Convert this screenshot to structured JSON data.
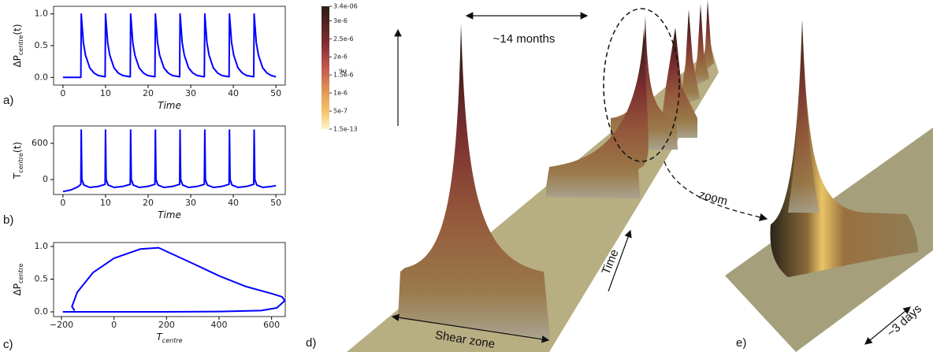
{
  "chart_data": [
    {
      "type": "line",
      "panel": "a)",
      "color": "#0000ff",
      "xlabel": {
        "main": "Time"
      },
      "ylabel": {
        "main": "ΔP",
        "sub": "centre",
        "tail": "(t)"
      },
      "x": [
        0,
        4.2,
        4.3,
        4.8,
        5.3,
        6.3,
        7.3,
        8.3,
        9.9,
        10.0,
        10.5,
        11.0,
        12.0,
        13.0,
        14.0,
        15.8,
        15.9,
        16.4,
        16.9,
        17.9,
        18.9,
        19.9,
        21.6,
        21.7,
        22.2,
        22.7,
        23.7,
        24.7,
        25.7,
        27.4,
        27.5,
        28.0,
        28.5,
        29.5,
        30.5,
        31.5,
        33.2,
        33.3,
        33.8,
        34.3,
        35.3,
        36.3,
        37.3,
        39.0,
        39.1,
        39.6,
        40.1,
        41.1,
        42.1,
        43.1,
        44.8,
        44.9,
        45.4,
        45.9,
        46.9,
        47.9,
        48.9,
        50.0
      ],
      "values": [
        0,
        0,
        1.0,
        0.55,
        0.35,
        0.15,
        0.07,
        0.03,
        0.01,
        1.0,
        0.55,
        0.35,
        0.15,
        0.07,
        0.03,
        0.01,
        1.0,
        0.55,
        0.35,
        0.15,
        0.07,
        0.03,
        0.01,
        1.0,
        0.55,
        0.35,
        0.15,
        0.07,
        0.03,
        0.01,
        1.0,
        0.55,
        0.35,
        0.15,
        0.07,
        0.03,
        0.01,
        1.0,
        0.55,
        0.35,
        0.15,
        0.07,
        0.03,
        0.01,
        1.0,
        0.55,
        0.35,
        0.15,
        0.07,
        0.03,
        0.01,
        1.0,
        0.55,
        0.35,
        0.15,
        0.07,
        0.03,
        0.01
      ],
      "xlim": [
        -2.2,
        52.2
      ],
      "ylim": [
        -0.12,
        1.12
      ],
      "xticks": [
        0,
        10,
        20,
        30,
        40,
        50
      ],
      "yticks": [
        {
          "value": 0,
          "label": "0.0"
        },
        {
          "value": 0.5,
          "label": "0.5"
        },
        {
          "value": 1,
          "label": "1.0"
        }
      ]
    },
    {
      "type": "line",
      "panel": "b)",
      "color": "#0000ff",
      "xlabel": {
        "main": "Time"
      },
      "ylabel": {
        "main": "T",
        "sub": "centre",
        "tail": "(t)"
      },
      "x": [
        0,
        2,
        3.5,
        4.2,
        4.3,
        4.45,
        4.9,
        6.3,
        8.3,
        9.9,
        10.0,
        10.15,
        10.6,
        12.0,
        14.0,
        15.8,
        15.9,
        16.05,
        16.5,
        17.9,
        19.9,
        21.6,
        21.7,
        21.85,
        22.3,
        23.7,
        25.7,
        27.4,
        27.5,
        27.65,
        28.1,
        29.5,
        31.5,
        33.2,
        33.3,
        33.45,
        33.9,
        35.3,
        37.3,
        39.0,
        39.1,
        39.25,
        39.7,
        41.1,
        43.1,
        44.8,
        44.9,
        45.05,
        45.5,
        46.9,
        48.9,
        50.0
      ],
      "values": [
        -200,
        -170,
        -120,
        -80,
        820,
        0,
        -90,
        -130,
        -115,
        -80,
        820,
        0,
        -90,
        -130,
        -115,
        -80,
        820,
        0,
        -90,
        -130,
        -115,
        -80,
        820,
        0,
        -90,
        -130,
        -115,
        -80,
        820,
        0,
        -90,
        -130,
        -115,
        -80,
        820,
        0,
        -90,
        -130,
        -115,
        -80,
        820,
        0,
        -90,
        -130,
        -115,
        -80,
        820,
        0,
        -90,
        -130,
        -115,
        -100
      ],
      "xlim": [
        -2.2,
        52.2
      ],
      "ylim": [
        -248,
        887
      ],
      "xticks": [
        0,
        10,
        20,
        30,
        40,
        50
      ],
      "yticks": [
        0,
        600
      ]
    },
    {
      "type": "line",
      "panel": "c)",
      "color": "#0000ff",
      "xlabel": {
        "main": "T",
        "sub": "centre"
      },
      "ylabel": {
        "main": "ΔP",
        "sub": "centre"
      },
      "x": [
        -195,
        -160,
        0,
        200,
        400,
        560,
        620,
        650,
        640,
        600,
        500,
        400,
        300,
        170,
        100,
        0,
        -80,
        -140,
        -160,
        -150
      ],
      "values": [
        0,
        0,
        0,
        0,
        0.005,
        0.02,
        0.06,
        0.17,
        0.23,
        0.28,
        0.39,
        0.55,
        0.74,
        0.98,
        0.96,
        0.82,
        0.6,
        0.3,
        0.08,
        0.02
      ],
      "xlim": [
        -230,
        652
      ],
      "ylim": [
        -0.072,
        1.06
      ],
      "xticks": [
        {
          "value": -200,
          "label": "−200"
        },
        0,
        200,
        400,
        600
      ],
      "yticks": [
        {
          "value": 0,
          "label": "0.0"
        },
        {
          "value": 0.5,
          "label": "0.5"
        },
        {
          "value": 1,
          "label": "1.0"
        }
      ]
    }
  ],
  "colorbar": {
    "label": "ε̇",
    "clim": [
      1.5e-13,
      3.4e-06
    ],
    "ticks": [
      {
        "value": 3.4e-06,
        "label": "3.4e-06"
      },
      {
        "value": 3e-06,
        "label": "3e-6"
      },
      {
        "value": 2.5e-06,
        "label": "2.5e-6"
      },
      {
        "value": 2e-06,
        "label": "2e-6"
      },
      {
        "value": 1.5e-06,
        "label": "1.5e-6"
      },
      {
        "value": 1e-06,
        "label": "1e-6"
      },
      {
        "value": 5e-07,
        "label": "5e-7"
      },
      {
        "value": 1.5e-13,
        "label": "1.5e-13"
      }
    ]
  },
  "annotations": {
    "period": "~14 months",
    "zoom": "zoom",
    "time": "Time",
    "shear_zone": "Shear zone",
    "duration": "~3 days",
    "panel_d": "d)",
    "panel_e": "e)"
  }
}
